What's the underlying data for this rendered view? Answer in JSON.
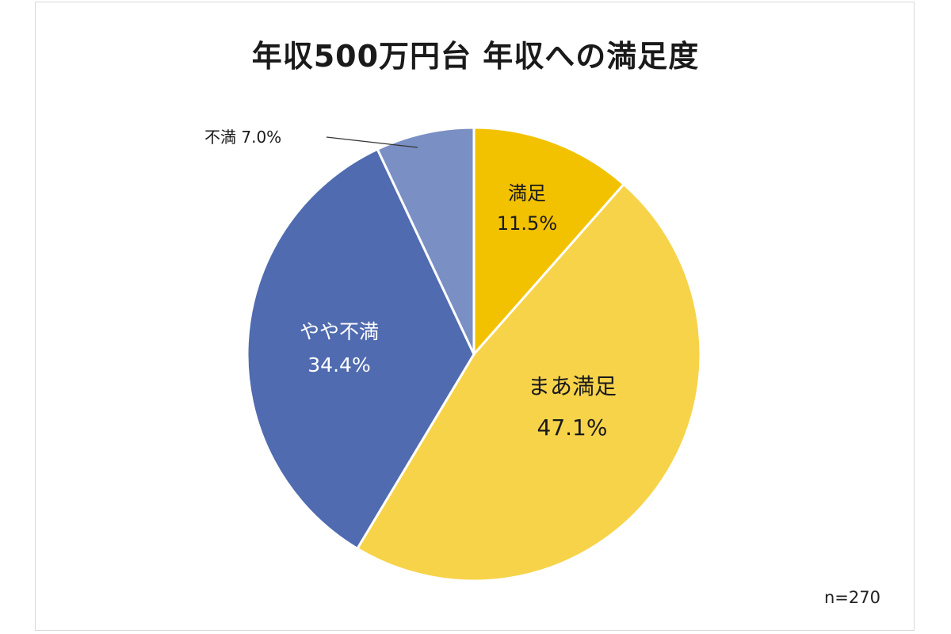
{
  "chart_data": {
    "type": "pie",
    "title": "年収500万円台 年収への満足度",
    "note": "n=270",
    "slices": [
      {
        "label": "満足",
        "value": 11.5,
        "value_label": "11.5%",
        "color": "#f2c200",
        "text_color": "#1a1a1a"
      },
      {
        "label": "まあ満足",
        "value": 47.1,
        "value_label": "47.1%",
        "color": "#f7d34a",
        "text_color": "#1a1a1a"
      },
      {
        "label": "やや不満",
        "value": 34.4,
        "value_label": "34.4%",
        "color": "#506bb0",
        "text_color": "#ffffff"
      },
      {
        "label": "不満",
        "value": 7.0,
        "value_label": "7.0%",
        "color": "#7a8fc4",
        "text_color": "#1a1a1a"
      }
    ]
  }
}
